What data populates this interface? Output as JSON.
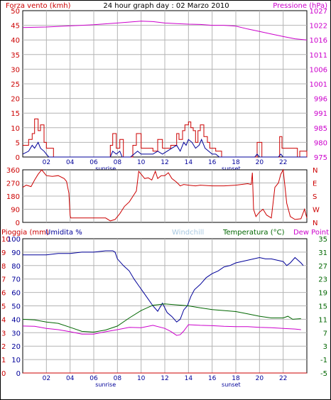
{
  "colors": {
    "red": "#cc0000",
    "magenta": "#cc00cc",
    "blue": "#000099",
    "green": "#006600",
    "lightblue": "#a8c8e0",
    "grid": "#b4b4b4",
    "plot_border": "#000000"
  },
  "chart_data": [
    {
      "id": "wind_pressure",
      "type": "line",
      "title": "24 hour graph day : 02 Marzo 2010",
      "ylabel_left": "Forza vento (kmh)",
      "ylabel_right": "Pressione (hPa)",
      "y_left_ticks": [
        0,
        5,
        10,
        15,
        20,
        25,
        30,
        35,
        40,
        45,
        50
      ],
      "ylim_left": [
        0,
        50
      ],
      "y_right_ticks": [
        975,
        980,
        985,
        991,
        996,
        1001,
        1006,
        1011,
        1016,
        1022,
        1027
      ],
      "ylim_right": [
        975,
        1027
      ],
      "x_ticks": [
        "02",
        "04",
        "06",
        "08",
        "10",
        "12",
        "14",
        "16",
        "18",
        "20",
        "22"
      ],
      "xlim_hours": [
        0,
        24
      ],
      "markers": [
        {
          "label": "sunrise",
          "hour": 7.0
        },
        {
          "label": "sunset",
          "hour": 17.6
        }
      ],
      "grid": true,
      "series": [
        {
          "name": "Pressione (hPa)",
          "axis": "right",
          "color": "magenta",
          "x": [
            0,
            2,
            4,
            6,
            8,
            10,
            11,
            12,
            13,
            14,
            15,
            16,
            17,
            18,
            19,
            20,
            21,
            22,
            23,
            24
          ],
          "y": [
            1021,
            1021.2,
            1021.6,
            1022,
            1022.6,
            1023.3,
            1023.1,
            1022.6,
            1022.4,
            1022.2,
            1022.1,
            1021.8,
            1021.8,
            1021.5,
            1020.5,
            1019.6,
            1018.7,
            1017.8,
            1017,
            1016.6
          ]
        },
        {
          "style": "step",
          "axis": "left",
          "color": "red",
          "x": [
            0,
            0.5,
            0.8,
            1.0,
            1.3,
            1.5,
            1.8,
            2.0,
            2.6,
            7.4,
            7.6,
            7.9,
            8.2,
            8.5,
            9.1,
            9.3,
            9.6,
            10.0,
            10.4,
            11.0,
            11.4,
            11.8,
            12.0,
            12.5,
            13.0,
            13.2,
            13.5,
            13.7,
            14.0,
            14.2,
            14.4,
            14.6,
            14.8,
            15.0,
            15.3,
            15.6,
            15.8,
            16.0,
            16.3,
            16.8,
            19.5,
            19.8,
            20.2,
            21.5,
            21.7,
            21.9,
            23.2,
            23.4,
            24
          ],
          "y": [
            4,
            6,
            8,
            13,
            9,
            11,
            5,
            3,
            0,
            4,
            8,
            3,
            6,
            0,
            0,
            4,
            8,
            3,
            3,
            2,
            6,
            3,
            3,
            4,
            8,
            6,
            9,
            11,
            12,
            10,
            9,
            5,
            9,
            11,
            7,
            5,
            3,
            3,
            2,
            0,
            0,
            5,
            0,
            0,
            7,
            3,
            0,
            2,
            0
          ]
        },
        {
          "axis": "left",
          "color": "blue",
          "x": [
            0,
            0.5,
            0.8,
            1.0,
            1.3,
            1.5,
            1.8,
            2.0,
            2.2,
            7.4,
            7.6,
            7.9,
            8.2,
            8.4,
            9.1,
            9.4,
            9.7,
            10.0,
            10.4,
            11.0,
            11.4,
            11.8,
            12.2,
            12.6,
            13.0,
            13.3,
            13.6,
            13.8,
            14.0,
            14.3,
            14.6,
            14.9,
            15.1,
            15.4,
            15.7,
            16.0,
            16.3,
            16.6,
            19.6,
            19.8,
            20.0,
            21.6,
            21.8,
            22.0,
            24
          ],
          "y": [
            1,
            2,
            4,
            3,
            5,
            3,
            2,
            1,
            0,
            0,
            2,
            1,
            2,
            0,
            0,
            1,
            2,
            1,
            1,
            1,
            2,
            1,
            2,
            3,
            4,
            2,
            5,
            4,
            6,
            5,
            3,
            4,
            6,
            3,
            2,
            1,
            1,
            0,
            0,
            1,
            0,
            0,
            1,
            0,
            0
          ]
        }
      ]
    },
    {
      "id": "wind_direction",
      "type": "line",
      "y_left_ticks": [
        0,
        90,
        180,
        270,
        360
      ],
      "ylim": [
        0,
        360
      ],
      "y_right_ticks": [
        "N",
        "W",
        "S",
        "E",
        "N"
      ],
      "grid": true,
      "series": [
        {
          "color": "red",
          "x": [
            0,
            0.3,
            0.7,
            1.0,
            1.3,
            1.6,
            2.0,
            2.5,
            3.0,
            3.5,
            3.7,
            3.9,
            4.0,
            4.05,
            7.0,
            7.4,
            7.8,
            8.2,
            8.6,
            9.0,
            9.4,
            9.6,
            9.8,
            10.0,
            10.3,
            10.6,
            10.9,
            11.2,
            11.4,
            11.7,
            12.0,
            12.3,
            12.6,
            13.0,
            13.3,
            13.6,
            14.0,
            14.6,
            15.0,
            16.0,
            17.0,
            18.0,
            19.0,
            19.3,
            19.4,
            19.5,
            19.7,
            20.0,
            20.3,
            20.6,
            21.0,
            21.3,
            21.6,
            21.8,
            22.0,
            22.3,
            22.6,
            23.0,
            23.5,
            23.8,
            24
          ],
          "y": [
            240,
            255,
            245,
            290,
            330,
            360,
            320,
            315,
            320,
            300,
            280,
            200,
            50,
            30,
            30,
            10,
            20,
            60,
            110,
            140,
            190,
            215,
            350,
            330,
            300,
            305,
            290,
            350,
            300,
            320,
            320,
            340,
            300,
            275,
            250,
            260,
            255,
            250,
            255,
            250,
            250,
            255,
            265,
            260,
            340,
            90,
            40,
            70,
            90,
            50,
            30,
            240,
            270,
            330,
            360,
            130,
            40,
            20,
            25,
            90,
            30
          ]
        }
      ]
    },
    {
      "id": "temp_humidity",
      "type": "line",
      "ylabel_left": "Pioggia (mm)",
      "ylabel_left2": "Umidita %",
      "label_windchill": "Windchill",
      "ylabel_right": "Temperatura (°C)",
      "label_dewpoint": "Dew Point",
      "y_left_ticks": [
        0,
        1,
        2,
        3,
        4,
        5,
        6,
        7,
        8,
        9,
        10
      ],
      "ylim_left": [
        0,
        10
      ],
      "y_left2_ticks": [
        0,
        10,
        20,
        30,
        40,
        50,
        60,
        70,
        80,
        90,
        100
      ],
      "ylim_left2": [
        0,
        100
      ],
      "y_right_ticks": [
        -5,
        -1,
        3,
        7,
        11,
        15,
        19,
        23,
        27,
        31,
        35
      ],
      "ylim_right": [
        -5,
        35
      ],
      "x_ticks": [
        "02",
        "04",
        "06",
        "08",
        "10",
        "12",
        "14",
        "16",
        "18",
        "20",
        "22"
      ],
      "markers": [
        {
          "label": "sunrise",
          "hour": 7.0
        },
        {
          "label": "sunset",
          "hour": 17.6
        }
      ],
      "grid": true,
      "series": [
        {
          "name": "Umidita %",
          "axis": "left2",
          "color": "blue",
          "x": [
            0,
            2,
            3,
            4,
            5,
            6,
            7,
            7.6,
            7.8,
            8.0,
            8.5,
            9.0,
            9.4,
            9.8,
            10.2,
            10.6,
            11.0,
            11.4,
            11.8,
            12.2,
            12.6,
            13.0,
            13.3,
            13.6,
            13.9,
            14.2,
            14.5,
            15.0,
            15.5,
            16.0,
            16.5,
            17.0,
            17.5,
            18.0,
            19.0,
            20.0,
            20.5,
            21.0,
            21.5,
            22.0,
            22.3,
            22.6,
            23.0,
            23.5,
            23.7
          ],
          "y": [
            88,
            88,
            89,
            89,
            90,
            90,
            91,
            91,
            90,
            85,
            80,
            76,
            70,
            65,
            60,
            55,
            50,
            46,
            52,
            45,
            42,
            38,
            40,
            47,
            50,
            57,
            62,
            66,
            71,
            74,
            76,
            79,
            80,
            82,
            84,
            86,
            85,
            85,
            84,
            83,
            80,
            82,
            86,
            82,
            80
          ]
        },
        {
          "name": "Temperatura (°C)",
          "axis": "right",
          "color": "green",
          "x": [
            0,
            1,
            2,
            3,
            4,
            5,
            6,
            7,
            8,
            9,
            10,
            11,
            12,
            13,
            14,
            15,
            16,
            17,
            18,
            19,
            20,
            21,
            22,
            22.4,
            22.8,
            23.5
          ],
          "y": [
            11,
            10.8,
            10.2,
            9.8,
            8.6,
            7.4,
            7.2,
            7.8,
            9.0,
            11.4,
            13.6,
            15.2,
            15.6,
            15.3,
            15.0,
            14.4,
            13.9,
            13.6,
            13.3,
            12.6,
            11.9,
            11.4,
            11.4,
            11.9,
            11.0,
            11.2
          ]
        },
        {
          "name": "Dew Point",
          "axis": "right",
          "color": "magenta",
          "x": [
            0,
            1,
            2,
            3,
            4,
            5,
            6,
            7,
            8,
            9,
            10,
            11,
            12,
            12.5,
            13,
            13.3,
            13.6,
            14,
            15,
            16,
            17,
            18,
            19,
            20,
            21,
            22,
            23,
            23.5
          ],
          "y": [
            9.0,
            8.9,
            8.3,
            7.9,
            7.3,
            6.6,
            6.6,
            7.3,
            7.9,
            8.6,
            8.5,
            9.2,
            8.3,
            7.4,
            6.2,
            6.4,
            7.5,
            9.4,
            9.2,
            9.1,
            8.9,
            8.8,
            8.8,
            8.6,
            8.5,
            8.3,
            8.1,
            7.9
          ]
        },
        {
          "name": "Pioggia (mm)",
          "axis": "left",
          "color": "red",
          "x": [
            0,
            24
          ],
          "y": [
            0,
            0
          ]
        }
      ]
    }
  ]
}
